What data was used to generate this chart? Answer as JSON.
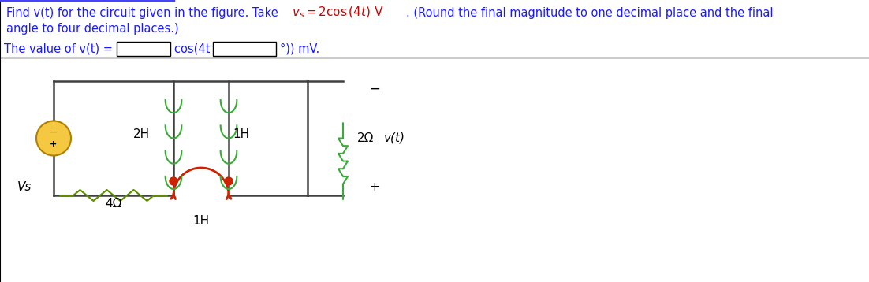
{
  "component_labels": {
    "resistor_top": "4Ω",
    "inductor_top": "1H",
    "inductor_left": "2H",
    "inductor_right": "1H",
    "resistor_right": "2Ω",
    "voltage_source": "Vs",
    "output": "v(t)"
  },
  "colors": {
    "background": "#ffffff",
    "title_main": "#1a1aff",
    "title_formula": "#cc0000",
    "wire": "#404040",
    "resistor_top": "#5c8a00",
    "inductor_top": "#cc2200",
    "inductor_coil": "#3aaa3a",
    "resistor_right": "#3aaa3a",
    "voltage_source_body": "#f5c842",
    "voltage_source_border": "#b08000",
    "dot": "#cc2200",
    "text_label": "#000000",
    "bottom_text": "#1a1aff",
    "box_fill": "#ffffff",
    "box_border": "#000000"
  },
  "figsize": [
    11.02,
    3.58
  ],
  "dpi": 100
}
